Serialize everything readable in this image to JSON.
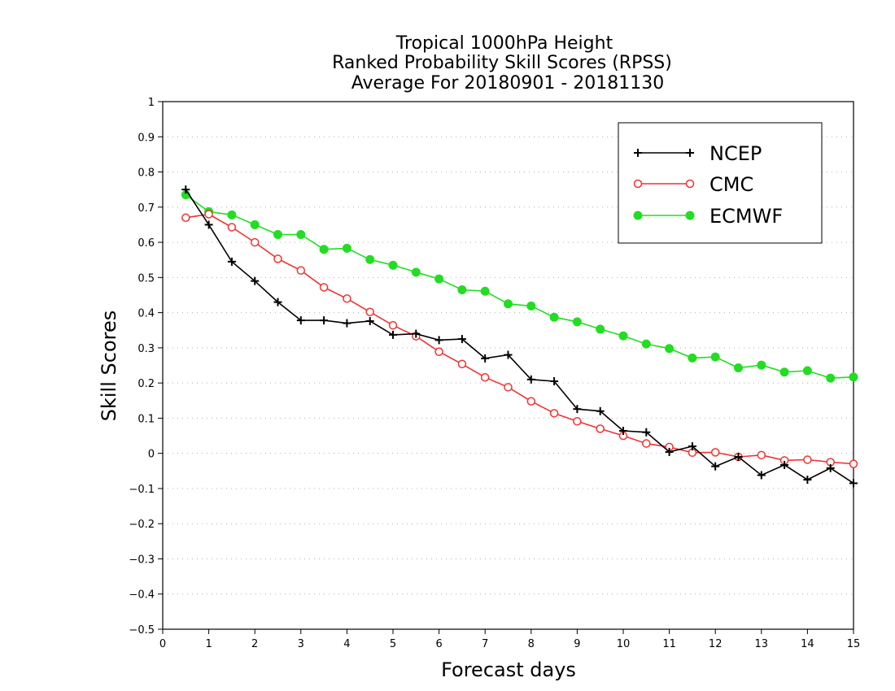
{
  "chart_data": {
    "type": "line",
    "title_lines": [
      "Tropical 1000hPa Height",
      "Ranked Probability Skill Scores (RPSS)",
      "Average For 20180901 - 20181130"
    ],
    "xlabel": "Forecast days",
    "ylabel": "Skill Scores",
    "xlim": [
      0,
      15
    ],
    "ylim": [
      -0.5,
      1
    ],
    "x_ticks": [
      0,
      1,
      2,
      3,
      4,
      5,
      6,
      7,
      8,
      9,
      10,
      11,
      12,
      13,
      14,
      15
    ],
    "y_ticks": [
      -0.5,
      -0.4,
      -0.3,
      -0.2,
      -0.1,
      0,
      0.1,
      0.2,
      0.3,
      0.4,
      0.5,
      0.6,
      0.7,
      0.8,
      0.9,
      1
    ],
    "y_tick_labels": [
      "−0.5",
      "−0.4",
      "−0.3",
      "−0.2",
      "−0.1",
      "0",
      "0.1",
      "0.2",
      "0.3",
      "0.4",
      "0.5",
      "0.6",
      "0.7",
      "0.8",
      "0.9",
      "1"
    ],
    "grid": "dotted horizontal",
    "legend_position": "top-right",
    "x": [
      0.5,
      1,
      1.5,
      2,
      2.5,
      3,
      3.5,
      4,
      4.5,
      5,
      5.5,
      6,
      6.5,
      7,
      7.5,
      8,
      8.5,
      9,
      9.5,
      10,
      10.5,
      11,
      11.5,
      12,
      12.5,
      13,
      13.5,
      14,
      14.5,
      15
    ],
    "series": [
      {
        "name": "NCEP",
        "color": "#000000",
        "marker": "plus",
        "values": [
          0.75,
          0.65,
          0.545,
          0.49,
          0.43,
          0.378,
          0.378,
          0.37,
          0.376,
          0.337,
          0.34,
          0.322,
          0.325,
          0.27,
          0.28,
          0.21,
          0.205,
          0.126,
          0.12,
          0.064,
          0.06,
          0.004,
          0.02,
          -0.037,
          -0.01,
          -0.062,
          -0.033,
          -0.075,
          -0.042,
          -0.085
        ]
      },
      {
        "name": "CMC",
        "color": "#ee3333",
        "marker": "open-circle",
        "values": [
          0.67,
          0.68,
          0.643,
          0.6,
          0.553,
          0.52,
          0.472,
          0.44,
          0.402,
          0.364,
          0.333,
          0.289,
          0.254,
          0.216,
          0.188,
          0.148,
          0.114,
          0.091,
          0.07,
          0.05,
          0.028,
          0.018,
          0.002,
          0.003,
          -0.01,
          -0.005,
          -0.02,
          -0.018,
          -0.025,
          -0.03
        ]
      },
      {
        "name": "ECMWF",
        "color": "#22dd22",
        "marker": "filled-circle",
        "values": [
          0.735,
          0.687,
          0.678,
          0.65,
          0.622,
          0.622,
          0.58,
          0.583,
          0.551,
          0.535,
          0.515,
          0.496,
          0.465,
          0.461,
          0.425,
          0.419,
          0.387,
          0.374,
          0.353,
          0.334,
          0.311,
          0.298,
          0.271,
          0.274,
          0.243,
          0.251,
          0.231,
          0.235,
          0.214,
          0.217
        ]
      }
    ]
  }
}
